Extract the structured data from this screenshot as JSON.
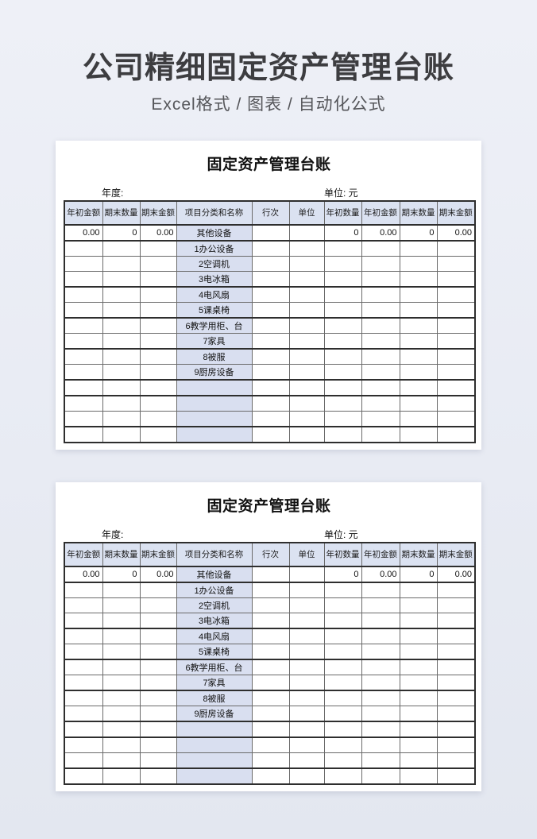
{
  "hero": {
    "title": "公司精细固定资产管理台账",
    "subtitle": "Excel格式 / 图表 / 自动化公式"
  },
  "colors": {
    "page_bg_top": "#eef0f7",
    "page_bg_bottom": "#e3e7f0",
    "card_bg": "#ffffff",
    "header_fill": "#dbe2f1",
    "category_fill": "#d9dff0"
  },
  "panels": [
    {
      "table_title": "固定资产管理台账",
      "year_label": "年度:",
      "unit_label": "单位: 元",
      "columns": [
        "年初金额",
        "期末数量",
        "期末金额",
        "项目分类和名称",
        "行次",
        "单位",
        "年初数量",
        "年初金额",
        "期末数量",
        "期末金额"
      ],
      "rows": [
        [
          "0.00",
          "0",
          "0.00",
          "其他设备",
          "",
          "",
          "0",
          "0.00",
          "0",
          "0.00"
        ],
        [
          "",
          "",
          "",
          "1办公设备",
          "",
          "",
          "",
          "",
          "",
          ""
        ],
        [
          "",
          "",
          "",
          "2空调机",
          "",
          "",
          "",
          "",
          "",
          ""
        ],
        [
          "",
          "",
          "",
          "3电冰箱",
          "",
          "",
          "",
          "",
          "",
          ""
        ],
        [
          "",
          "",
          "",
          "4电风扇",
          "",
          "",
          "",
          "",
          "",
          ""
        ],
        [
          "",
          "",
          "",
          "5课桌椅",
          "",
          "",
          "",
          "",
          "",
          ""
        ],
        [
          "",
          "",
          "",
          "6教学用柜、台",
          "",
          "",
          "",
          "",
          "",
          ""
        ],
        [
          "",
          "",
          "",
          "7家具",
          "",
          "",
          "",
          "",
          "",
          ""
        ],
        [
          "",
          "",
          "",
          "8被服",
          "",
          "",
          "",
          "",
          "",
          ""
        ],
        [
          "",
          "",
          "",
          "9厨房设备",
          "",
          "",
          "",
          "",
          "",
          ""
        ],
        [
          "",
          "",
          "",
          "",
          "",
          "",
          "",
          "",
          "",
          ""
        ],
        [
          "",
          "",
          "",
          "",
          "",
          "",
          "",
          "",
          "",
          ""
        ],
        [
          "",
          "",
          "",
          "",
          "",
          "",
          "",
          "",
          "",
          ""
        ],
        [
          "",
          "",
          "",
          "",
          "",
          "",
          "",
          "",
          "",
          ""
        ]
      ]
    },
    {
      "table_title": "固定资产管理台账",
      "year_label": "年度:",
      "unit_label": "单位: 元",
      "columns": [
        "年初金额",
        "期末数量",
        "期末金额",
        "项目分类和名称",
        "行次",
        "单位",
        "年初数量",
        "年初金额",
        "期末数量",
        "期末金额"
      ],
      "rows": [
        [
          "0.00",
          "0",
          "0.00",
          "其他设备",
          "",
          "",
          "0",
          "0.00",
          "0",
          "0.00"
        ],
        [
          "",
          "",
          "",
          "1办公设备",
          "",
          "",
          "",
          "",
          "",
          ""
        ],
        [
          "",
          "",
          "",
          "2空调机",
          "",
          "",
          "",
          "",
          "",
          ""
        ],
        [
          "",
          "",
          "",
          "3电冰箱",
          "",
          "",
          "",
          "",
          "",
          ""
        ],
        [
          "",
          "",
          "",
          "4电风扇",
          "",
          "",
          "",
          "",
          "",
          ""
        ],
        [
          "",
          "",
          "",
          "5课桌椅",
          "",
          "",
          "",
          "",
          "",
          ""
        ],
        [
          "",
          "",
          "",
          "6教学用柜、台",
          "",
          "",
          "",
          "",
          "",
          ""
        ],
        [
          "",
          "",
          "",
          "7家具",
          "",
          "",
          "",
          "",
          "",
          ""
        ],
        [
          "",
          "",
          "",
          "8被服",
          "",
          "",
          "",
          "",
          "",
          ""
        ],
        [
          "",
          "",
          "",
          "9厨房设备",
          "",
          "",
          "",
          "",
          "",
          ""
        ],
        [
          "",
          "",
          "",
          "",
          "",
          "",
          "",
          "",
          "",
          ""
        ],
        [
          "",
          "",
          "",
          "",
          "",
          "",
          "",
          "",
          "",
          ""
        ],
        [
          "",
          "",
          "",
          "",
          "",
          "",
          "",
          "",
          "",
          ""
        ],
        [
          "",
          "",
          "",
          "",
          "",
          "",
          "",
          "",
          "",
          ""
        ]
      ]
    }
  ]
}
